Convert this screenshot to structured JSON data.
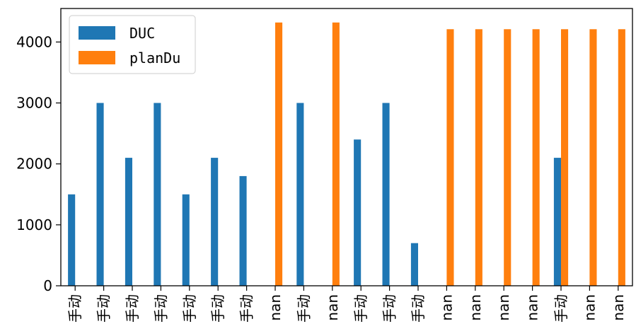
{
  "chart_data": {
    "type": "bar",
    "categories": [
      "手动",
      "手动",
      "手动",
      "手动",
      "手动",
      "手动",
      "手动",
      "nan",
      "手动",
      "nan",
      "手动",
      "手动",
      "手动",
      "nan",
      "nan",
      "nan",
      "nan",
      "手动",
      "nan",
      "nan"
    ],
    "series": [
      {
        "name": "DUC",
        "color": "#1f77b4",
        "values": [
          1500,
          3000,
          2100,
          3000,
          1500,
          2100,
          1800,
          null,
          3000,
          null,
          2400,
          3000,
          700,
          null,
          null,
          null,
          null,
          2100,
          null,
          null
        ]
      },
      {
        "name": "planDu",
        "color": "#ff7f0e",
        "values": [
          null,
          null,
          null,
          null,
          null,
          null,
          null,
          4320,
          null,
          4320,
          null,
          null,
          null,
          4210,
          4210,
          4210,
          4210,
          4210,
          4210,
          4210
        ]
      }
    ],
    "yticks": [
      0,
      1000,
      2000,
      3000,
      4000
    ],
    "ylim": [
      0,
      4550
    ],
    "legend": "top-left",
    "grid": false
  }
}
